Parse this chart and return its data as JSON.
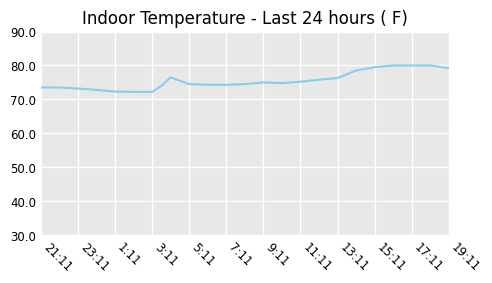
{
  "title": "Indoor Temperature - Last 24 hours ( F)",
  "x_labels": [
    "21:11",
    "23:11",
    "1:11",
    "3:11",
    "5:11",
    "7:11",
    "9:11",
    "11:11",
    "13:11",
    "15:11",
    "17:11",
    "19:11"
  ],
  "x_values": [
    0,
    2,
    4,
    6,
    8,
    10,
    12,
    14,
    16,
    18,
    20,
    22
  ],
  "y_data_x": [
    0,
    1,
    2,
    3,
    4,
    5,
    6,
    6.5,
    7,
    8,
    9,
    10,
    11,
    12,
    13,
    14,
    15,
    16,
    17,
    18,
    19,
    20,
    21,
    22
  ],
  "y_data_y": [
    73.5,
    73.5,
    73.2,
    72.8,
    72.3,
    72.2,
    72.2,
    74.0,
    76.5,
    74.5,
    74.3,
    74.3,
    74.5,
    75.0,
    74.8,
    75.2,
    75.8,
    76.3,
    78.5,
    79.5,
    80.0,
    80.0,
    80.0,
    79.2
  ],
  "ylim": [
    30.0,
    90.0
  ],
  "yticks": [
    30.0,
    40.0,
    50.0,
    60.0,
    70.0,
    80.0,
    90.0
  ],
  "line_color": "#87CEEB",
  "fig_bg_color": "#ffffff",
  "plot_bg_color": "#e8e8e8",
  "grid_color": "#ffffff",
  "title_fontsize": 12,
  "tick_fontsize": 8.5
}
